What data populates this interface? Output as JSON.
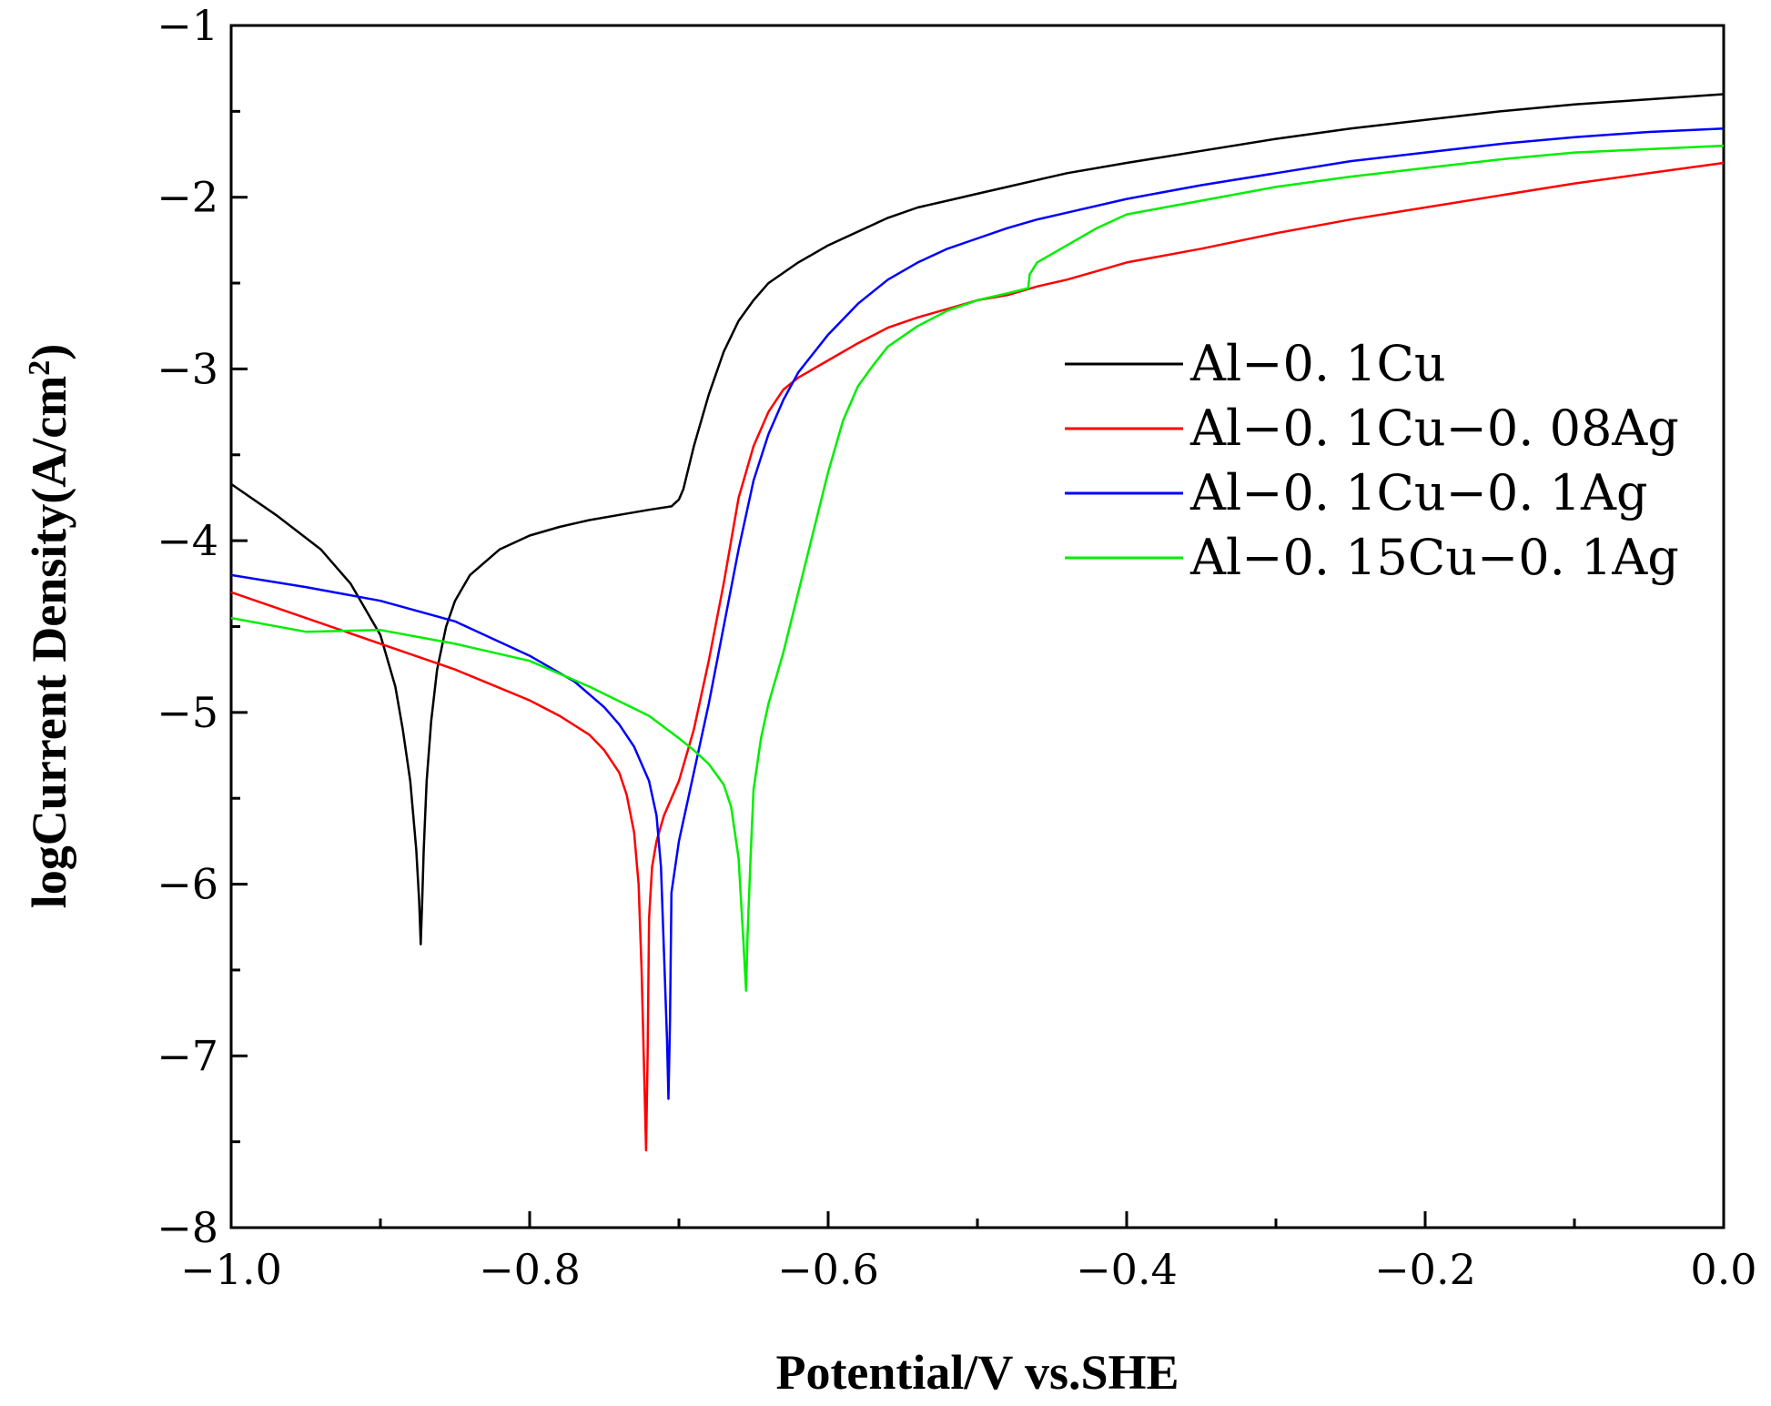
{
  "chart_data": {
    "type": "line",
    "title": "",
    "xlabel": "Potential/V vs.SHE",
    "ylabel_main": "logCurrent Density",
    "ylabel_unit": "(A/cm",
    "ylabel_sup": "2",
    "ylabel_close": ")",
    "xlim": [
      -1.0,
      0.0
    ],
    "ylim": [
      -8,
      -1
    ],
    "x_ticks": [
      -1.0,
      -0.8,
      -0.6,
      -0.4,
      -0.2,
      0.0
    ],
    "x_tick_labels": [
      "−1.0",
      "−0.8",
      "−0.6",
      "−0.4",
      "−0.2",
      "0.0"
    ],
    "x_minor_ticks": [
      -0.9,
      -0.7,
      -0.5,
      -0.3,
      -0.1
    ],
    "y_ticks": [
      -8,
      -7,
      -6,
      -5,
      -4,
      -3,
      -2,
      -1
    ],
    "y_tick_labels": [
      "−8",
      "−7",
      "−6",
      "−5",
      "−4",
      "−3",
      "−2",
      "−1"
    ],
    "y_minor_ticks": [
      -7.5,
      -6.5,
      -5.5,
      -4.5,
      -3.5,
      -2.5,
      -1.5
    ],
    "grid": false,
    "legend_position": "right-middle",
    "series": [
      {
        "name": "Al−0. 1Cu",
        "color": "#000000",
        "x": [
          -1.0,
          -0.97,
          -0.94,
          -0.92,
          -0.9,
          -0.89,
          -0.885,
          -0.88,
          -0.876,
          -0.874,
          -0.873,
          -0.872,
          -0.871,
          -0.869,
          -0.866,
          -0.862,
          -0.856,
          -0.85,
          -0.84,
          -0.82,
          -0.8,
          -0.78,
          -0.76,
          -0.74,
          -0.72,
          -0.705,
          -0.7,
          -0.697,
          -0.69,
          -0.68,
          -0.67,
          -0.66,
          -0.65,
          -0.64,
          -0.62,
          -0.6,
          -0.58,
          -0.56,
          -0.54,
          -0.52,
          -0.5,
          -0.48,
          -0.46,
          -0.44,
          -0.4,
          -0.35,
          -0.3,
          -0.25,
          -0.2,
          -0.15,
          -0.1,
          -0.05,
          0.0
        ],
        "y": [
          -3.67,
          -3.85,
          -4.05,
          -4.25,
          -4.55,
          -4.85,
          -5.1,
          -5.4,
          -5.8,
          -6.1,
          -6.35,
          -6.1,
          -5.8,
          -5.4,
          -5.05,
          -4.75,
          -4.5,
          -4.35,
          -4.2,
          -4.05,
          -3.97,
          -3.92,
          -3.88,
          -3.85,
          -3.82,
          -3.8,
          -3.76,
          -3.7,
          -3.45,
          -3.15,
          -2.9,
          -2.72,
          -2.6,
          -2.5,
          -2.38,
          -2.28,
          -2.2,
          -2.12,
          -2.06,
          -2.02,
          -1.98,
          -1.94,
          -1.9,
          -1.86,
          -1.8,
          -1.73,
          -1.66,
          -1.6,
          -1.55,
          -1.5,
          -1.46,
          -1.43,
          -1.4
        ]
      },
      {
        "name": "Al−0. 1Cu−0. 08Ag",
        "color": "#ff0000",
        "x": [
          -1.0,
          -0.95,
          -0.9,
          -0.85,
          -0.8,
          -0.78,
          -0.76,
          -0.75,
          -0.74,
          -0.735,
          -0.73,
          -0.727,
          -0.725,
          -0.723,
          -0.722,
          -0.721,
          -0.72,
          -0.718,
          -0.715,
          -0.71,
          -0.7,
          -0.69,
          -0.68,
          -0.67,
          -0.66,
          -0.65,
          -0.64,
          -0.63,
          -0.62,
          -0.6,
          -0.58,
          -0.56,
          -0.54,
          -0.52,
          -0.5,
          -0.48,
          -0.46,
          -0.44,
          -0.42,
          -0.4,
          -0.35,
          -0.3,
          -0.25,
          -0.2,
          -0.15,
          -0.1,
          -0.05,
          0.0
        ],
        "y": [
          -4.3,
          -4.45,
          -4.6,
          -4.75,
          -4.93,
          -5.02,
          -5.13,
          -5.22,
          -5.35,
          -5.48,
          -5.7,
          -6.0,
          -6.5,
          -7.2,
          -7.55,
          -7.0,
          -6.2,
          -5.9,
          -5.75,
          -5.6,
          -5.4,
          -5.1,
          -4.7,
          -4.25,
          -3.75,
          -3.45,
          -3.25,
          -3.12,
          -3.05,
          -2.95,
          -2.85,
          -2.76,
          -2.7,
          -2.65,
          -2.6,
          -2.57,
          -2.52,
          -2.48,
          -2.43,
          -2.38,
          -2.3,
          -2.21,
          -2.13,
          -2.06,
          -1.99,
          -1.92,
          -1.86,
          -1.8
        ]
      },
      {
        "name": "Al−0. 1Cu−0. 1Ag",
        "color": "#0000ff",
        "x": [
          -1.0,
          -0.95,
          -0.9,
          -0.85,
          -0.8,
          -0.77,
          -0.75,
          -0.74,
          -0.73,
          -0.72,
          -0.715,
          -0.712,
          -0.71,
          -0.708,
          -0.707,
          -0.706,
          -0.705,
          -0.7,
          -0.69,
          -0.68,
          -0.67,
          -0.66,
          -0.65,
          -0.64,
          -0.63,
          -0.62,
          -0.6,
          -0.58,
          -0.56,
          -0.54,
          -0.52,
          -0.5,
          -0.48,
          -0.46,
          -0.44,
          -0.4,
          -0.35,
          -0.3,
          -0.25,
          -0.2,
          -0.15,
          -0.1,
          -0.05,
          0.0
        ],
        "y": [
          -4.2,
          -4.27,
          -4.35,
          -4.47,
          -4.67,
          -4.82,
          -4.97,
          -5.07,
          -5.2,
          -5.4,
          -5.6,
          -5.9,
          -6.4,
          -6.9,
          -7.25,
          -6.8,
          -6.05,
          -5.75,
          -5.35,
          -4.95,
          -4.5,
          -4.05,
          -3.65,
          -3.38,
          -3.18,
          -3.02,
          -2.8,
          -2.62,
          -2.48,
          -2.38,
          -2.3,
          -2.24,
          -2.18,
          -2.13,
          -2.09,
          -2.01,
          -1.93,
          -1.86,
          -1.79,
          -1.74,
          -1.69,
          -1.65,
          -1.62,
          -1.6
        ]
      },
      {
        "name": "Al−0. 15Cu−0. 1Ag",
        "color": "#00ee00",
        "x": [
          -1.0,
          -0.95,
          -0.9,
          -0.85,
          -0.8,
          -0.76,
          -0.72,
          -0.7,
          -0.69,
          -0.68,
          -0.67,
          -0.665,
          -0.66,
          -0.657,
          -0.655,
          -0.654,
          -0.652,
          -0.65,
          -0.645,
          -0.64,
          -0.63,
          -0.62,
          -0.61,
          -0.6,
          -0.59,
          -0.58,
          -0.57,
          -0.56,
          -0.54,
          -0.52,
          -0.5,
          -0.48,
          -0.466,
          -0.465,
          -0.46,
          -0.44,
          -0.42,
          -0.4,
          -0.35,
          -0.3,
          -0.25,
          -0.2,
          -0.15,
          -0.1,
          -0.05,
          0.0
        ],
        "y": [
          -4.45,
          -4.53,
          -4.52,
          -4.6,
          -4.7,
          -4.85,
          -5.02,
          -5.15,
          -5.22,
          -5.3,
          -5.42,
          -5.55,
          -5.85,
          -6.3,
          -6.62,
          -6.3,
          -5.85,
          -5.45,
          -5.15,
          -4.95,
          -4.65,
          -4.3,
          -3.95,
          -3.6,
          -3.3,
          -3.1,
          -2.98,
          -2.87,
          -2.75,
          -2.66,
          -2.6,
          -2.56,
          -2.53,
          -2.45,
          -2.38,
          -2.28,
          -2.18,
          -2.1,
          -2.02,
          -1.94,
          -1.88,
          -1.83,
          -1.78,
          -1.74,
          -1.72,
          -1.7
        ]
      }
    ]
  }
}
